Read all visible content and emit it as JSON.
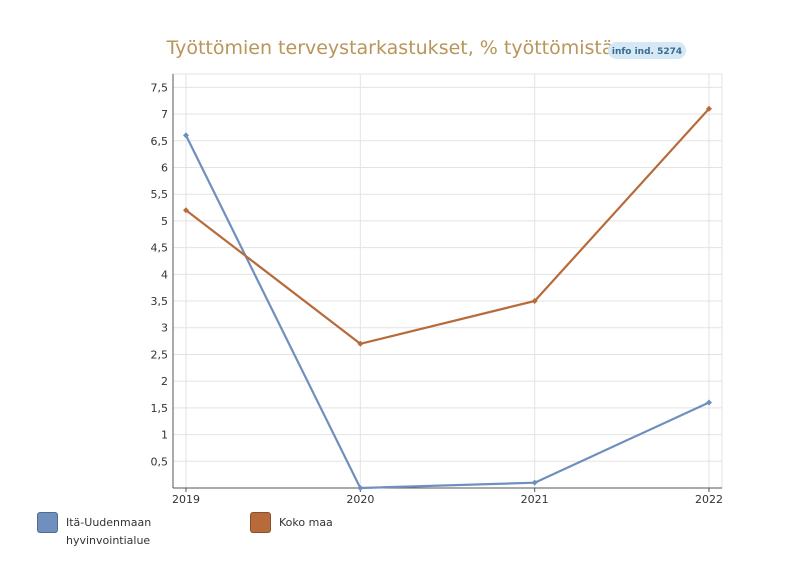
{
  "chart_data": {
    "type": "line",
    "title": "Työttömien terveystarkastukset, % työttömistä",
    "info_badge": "info ind. 5274",
    "xlabel": "",
    "ylabel": "",
    "x": [
      "2019",
      "2020",
      "2021",
      "2022"
    ],
    "ylim": [
      0,
      7.75
    ],
    "yticks": [
      "0,5",
      "1",
      "1,5",
      "2",
      "2,5",
      "3",
      "3,5",
      "4",
      "4,5",
      "5",
      "5,5",
      "6",
      "6,5",
      "7",
      "7,5"
    ],
    "grid": true,
    "legend_position": "bottom-left",
    "series": [
      {
        "name": "Itä-Uudenmaan\nhyvinvointialue",
        "values": [
          6.6,
          0.0,
          0.1,
          1.6
        ],
        "color": "#6f8fbe"
      },
      {
        "name": "Koko maa",
        "values": [
          5.2,
          2.7,
          3.5,
          7.1
        ],
        "color": "#b86b3a"
      }
    ]
  },
  "colors": {
    "title": "#b8955a",
    "badge_bg": "#d4e8f5",
    "badge_text": "#3d6a8f",
    "grid": "#e3e3e3",
    "axis": "#555555",
    "tick_text": "#333333"
  }
}
